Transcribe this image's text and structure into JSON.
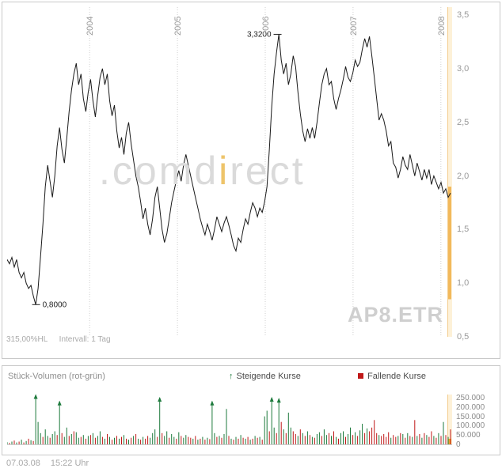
{
  "colors": {
    "line": "#1a1a1a",
    "grid": "#cfcfcf",
    "border": "#c9c9c9",
    "axis_text": "#9a9a9a",
    "green": "#1d7a3c",
    "red": "#c01818",
    "orange": "#f0a830",
    "orange_strip": "#fdf1d8",
    "orange_strip_line": "#f3cd8e",
    "orange_range": "#f2b95c",
    "annotation": "#222222",
    "watermark_gray": "#dadada",
    "watermark_orange": "#eec46a"
  },
  "price_chart": {
    "symbol_watermark": "AP8.ETR",
    "watermark": {
      "part1": ".comd",
      "part2": "i",
      "part3": "rect"
    },
    "range_label": "315,00%HL",
    "interval_label": "Intervall: 1 Tag",
    "y_ticks": [
      {
        "label": "3,5",
        "value": 3.5
      },
      {
        "label": "3,0",
        "value": 3.0
      },
      {
        "label": "2,5",
        "value": 2.5
      },
      {
        "label": "2,0",
        "value": 2.0
      },
      {
        "label": "1,5",
        "value": 1.5
      },
      {
        "label": "1,0",
        "value": 1.0
      },
      {
        "label": "0,5",
        "value": 0.5
      }
    ],
    "year_ticks": [
      {
        "label": "2004",
        "year": 2004
      },
      {
        "label": "2005",
        "year": 2005
      },
      {
        "label": "2006",
        "year": 2006
      },
      {
        "label": "2007",
        "year": 2007
      },
      {
        "label": "2008",
        "year": 2008
      }
    ],
    "annotations": [
      {
        "label": "3,3200",
        "year": 2006.14,
        "value": 3.32,
        "side": "left"
      },
      {
        "label": "0,8000",
        "year": 2003.39,
        "value": 0.8,
        "side": "right"
      }
    ],
    "current_range": {
      "high": 1.9,
      "low": 0.85
    }
  },
  "volume_chart": {
    "title": "Stück-Volumen (rot-grün)",
    "legend": [
      {
        "label": "Steigende Kurse",
        "icon": "arrow-up",
        "color": "#1d7a3c"
      },
      {
        "label": "Fallende Kurse",
        "icon": "square",
        "color": "#c01818"
      }
    ],
    "y_ticks": [
      {
        "label": "250.000",
        "value": 250000
      },
      {
        "label": "200.000",
        "value": 200000
      },
      {
        "label": "150.000",
        "value": 150000
      },
      {
        "label": "100.000",
        "value": 100000
      },
      {
        "label": "50.000",
        "value": 50000
      },
      {
        "label": "0",
        "value": 0
      }
    ],
    "current_bar": 30
  },
  "footer": {
    "date": "07.03.08",
    "time": "15:22 Uhr"
  },
  "chart_data": [
    {
      "type": "line",
      "name": "AP8.ETR Kurs (EUR)",
      "x_unit": "decimal_year",
      "x_start": 2003.06,
      "x_end": 2008.11,
      "x_ticks": [
        2004,
        2005,
        2006,
        2007,
        2008
      ],
      "ylim": [
        0.5,
        3.5
      ],
      "high": {
        "value": 3.32,
        "label": "3,3200"
      },
      "low": {
        "value": 0.8,
        "label": "0,8000"
      },
      "values": [
        1.22,
        1.18,
        1.24,
        1.15,
        1.22,
        1.1,
        1.05,
        1.1,
        1.0,
        0.95,
        0.98,
        0.88,
        0.8,
        0.95,
        1.25,
        1.55,
        1.9,
        2.1,
        1.95,
        1.8,
        2.0,
        2.28,
        2.45,
        2.25,
        2.12,
        2.35,
        2.6,
        2.8,
        2.95,
        3.05,
        2.85,
        2.95,
        2.72,
        2.6,
        2.78,
        2.9,
        2.7,
        2.55,
        2.75,
        2.92,
        3.0,
        2.85,
        2.95,
        2.7,
        2.56,
        2.66,
        2.42,
        2.26,
        2.36,
        2.2,
        2.4,
        2.5,
        2.3,
        2.15,
        2.0,
        1.9,
        1.76,
        1.6,
        1.7,
        1.55,
        1.45,
        1.6,
        1.8,
        1.9,
        1.7,
        1.5,
        1.38,
        1.46,
        1.6,
        1.75,
        1.86,
        1.96,
        2.05,
        1.95,
        2.1,
        2.2,
        2.1,
        2.0,
        1.9,
        1.8,
        1.7,
        1.6,
        1.52,
        1.45,
        1.55,
        1.48,
        1.4,
        1.5,
        1.62,
        1.55,
        1.48,
        1.56,
        1.62,
        1.54,
        1.45,
        1.35,
        1.3,
        1.42,
        1.38,
        1.5,
        1.6,
        1.55,
        1.66,
        1.75,
        1.7,
        1.62,
        1.7,
        1.66,
        1.76,
        1.9,
        2.25,
        2.65,
        2.95,
        3.15,
        3.32,
        3.08,
        2.95,
        3.05,
        2.85,
        2.95,
        3.12,
        3.02,
        2.78,
        2.58,
        2.42,
        2.32,
        2.44,
        2.35,
        2.45,
        2.35,
        2.5,
        2.68,
        2.85,
        2.95,
        3.0,
        2.85,
        2.88,
        2.72,
        2.62,
        2.72,
        2.8,
        2.9,
        3.02,
        2.92,
        2.88,
        2.96,
        3.08,
        3.02,
        3.06,
        3.18,
        3.28,
        3.2,
        3.3,
        3.12,
        2.92,
        2.72,
        2.52,
        2.58,
        2.52,
        2.42,
        2.28,
        2.32,
        2.12,
        2.08,
        1.98,
        2.06,
        2.18,
        2.1,
        2.06,
        2.2,
        2.1,
        2.0,
        2.12,
        2.04,
        1.96,
        2.06,
        1.98,
        2.06,
        1.92,
        2.0,
        1.94,
        1.88,
        1.94,
        1.84,
        1.88,
        1.8,
        1.84
      ]
    },
    {
      "type": "bar",
      "name": "Stück-Volumen (positiv = steigende Kurse grün, negativ = fallende Kurse rot)",
      "x_unit": "decimal_year",
      "x_start": 2003.06,
      "x_end": 2008.11,
      "ylim": [
        0,
        250000
      ],
      "scale": 1000,
      "values": [
        12,
        -8,
        15,
        -20,
        10,
        -15,
        25,
        -10,
        18,
        -30,
        22,
        -18,
        265,
        120,
        60,
        -40,
        80,
        45,
        -35,
        55,
        70,
        -50,
        230,
        -60,
        40,
        90,
        -45,
        55,
        -70,
        65,
        35,
        -40,
        50,
        -30,
        45,
        -50,
        60,
        -35,
        45,
        70,
        -40,
        30,
        -55,
        40,
        -25,
        35,
        -45,
        30,
        -40,
        50,
        -30,
        25,
        -35,
        45,
        -55,
        30,
        -25,
        40,
        -30,
        -45,
        35,
        60,
        80,
        -40,
        250,
        -60,
        45,
        70,
        -35,
        55,
        40,
        -30,
        65,
        -45,
        35,
        50,
        -40,
        -35,
        30,
        -45,
        25,
        -30,
        40,
        -25,
        35,
        -28,
        230,
        60,
        -40,
        45,
        -35,
        55,
        190,
        -45,
        30,
        -25,
        40,
        -30,
        50,
        -35,
        30,
        -40,
        25,
        -30,
        45,
        -35,
        40,
        -25,
        150,
        180,
        -70,
        250,
        90,
        -60,
        245,
        -120,
        80,
        -60,
        170,
        90,
        -70,
        -55,
        45,
        -80,
        60,
        -45,
        70,
        -50,
        40,
        -35,
        55,
        65,
        -45,
        80,
        50,
        -60,
        45,
        -70,
        40,
        -30,
        60,
        70,
        -40,
        55,
        90,
        -50,
        65,
        -45,
        75,
        110,
        -60,
        85,
        -70,
        -90,
        -130,
        -60,
        50,
        -45,
        -55,
        -40,
        -65,
        35,
        -50,
        -40,
        45,
        -60,
        55,
        -35,
        60,
        -45,
        40,
        -130,
        45,
        -55,
        35,
        -60,
        50,
        -40,
        -70,
        45,
        -35,
        60,
        -45,
        120,
        -50,
        40,
        -80
      ]
    }
  ]
}
